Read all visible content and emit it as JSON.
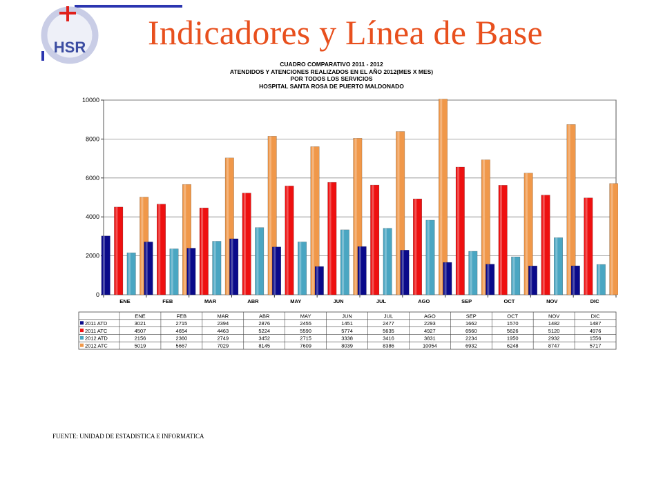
{
  "slide": {
    "title": "Indicadores y Línea de Base",
    "logo_text": "HSR",
    "subtitle_lines": [
      "CUADRO COMPARATIVO 2011 - 2012",
      "ATENDIDOS Y ATENCIONES  REALIZADOS EN  EL AÑO 2012(MES X MES)",
      "POR TODOS LOS SERVICIOS",
      "HOSPITAL SANTA ROSA DE PUERTO MALDONADO"
    ],
    "source": "FUENTE: UNIDAD DE ESTADISTICA E INFORMATICA"
  },
  "colors": {
    "title": "#e8501e",
    "logo_ring": "#c9cde6",
    "logo_letters": "#3c4da2",
    "logo_cross": "#e0201a",
    "logo_bar": "#2b35b0"
  },
  "chart_data": {
    "type": "bar",
    "categories": [
      "ENE",
      "FEB",
      "MAR",
      "ABR",
      "MAY",
      "JUN",
      "JUL",
      "AGO",
      "SEP",
      "OCT",
      "NOV",
      "DIC"
    ],
    "series": [
      {
        "name": "2011 ATD",
        "color": "#0a0a8a",
        "values": [
          3021,
          2715,
          2394,
          2876,
          2455,
          1451,
          2477,
          2293,
          1662,
          1570,
          1482,
          1487
        ]
      },
      {
        "name": "2011 ATC",
        "color": "#ee1010",
        "values": [
          4507,
          4654,
          4463,
          5224,
          5590,
          5774,
          5635,
          4927,
          6560,
          5626,
          5120,
          4976
        ]
      },
      {
        "name": "2012 ATD",
        "color": "#4aa6c2",
        "values": [
          2156,
          2360,
          2749,
          3452,
          2715,
          3338,
          3416,
          3831,
          2234,
          1950,
          2932,
          1556
        ]
      },
      {
        "name": "2012 ATC",
        "color": "#f0984a",
        "values": [
          5019,
          5667,
          7029,
          8145,
          7609,
          8039,
          8386,
          10054,
          6932,
          6248,
          8747,
          5717
        ]
      }
    ],
    "ylim": [
      0,
      10000
    ],
    "yticks": [
      0,
      2000,
      4000,
      6000,
      8000,
      10000
    ],
    "grid": true,
    "legend": "table-below"
  }
}
